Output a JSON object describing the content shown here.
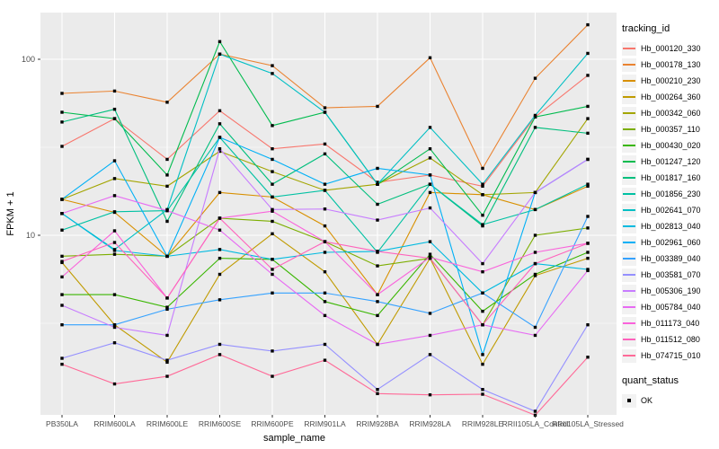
{
  "chart_data": {
    "type": "line",
    "xlabel": "sample_name",
    "ylabel": "FPKM + 1",
    "yscale": "log10",
    "ylim": [
      0.9,
      200
    ],
    "grid": "on",
    "legend_position": "right",
    "legend_title": "tracking_id",
    "marker_legend": {
      "title": "quant_status",
      "items": [
        {
          "label": "OK",
          "marker": "black-square"
        }
      ]
    },
    "yticks": [
      {
        "value": 10,
        "label": "10"
      },
      {
        "value": 100,
        "label": "100"
      }
    ],
    "yminor": [
      3.162,
      31.62
    ],
    "categories": [
      "PB350LA",
      "RRIM600LA",
      "RRIM600LE",
      "RRIM600SE",
      "RRIM600PE",
      "RRIM901LA",
      "RRIM928BA",
      "RRIM928LA",
      "RRIM928LE",
      "RRII105LA_Control",
      "RRII105LA_Stressed"
    ],
    "series": [
      {
        "name": "Hb_000120_330",
        "color": "#F8766D",
        "values": [
          32,
          46,
          27,
          51,
          31,
          33,
          20,
          22,
          19,
          47,
          81
        ]
      },
      {
        "name": "Hb_000178_130",
        "color": "#EA8331",
        "values": [
          64,
          66,
          57,
          107,
          92,
          53,
          54,
          102,
          24,
          78,
          157
        ]
      },
      {
        "name": "Hb_000210_230",
        "color": "#D89000",
        "values": [
          16,
          13.5,
          7.6,
          17.5,
          16.5,
          11.3,
          4.6,
          17.5,
          17,
          14,
          19
        ]
      },
      {
        "name": "Hb_000264_360",
        "color": "#C09B00",
        "values": [
          7,
          3.1,
          1.9,
          6,
          10.2,
          6.2,
          2.4,
          7.4,
          1.85,
          5.9,
          7.4
        ]
      },
      {
        "name": "Hb_000342_060",
        "color": "#A3A500",
        "values": [
          16,
          21,
          19,
          30,
          23,
          18,
          19.5,
          27.5,
          17,
          17.5,
          46
        ]
      },
      {
        "name": "Hb_000357_110",
        "color": "#7CAE00",
        "values": [
          7.6,
          7.8,
          7.6,
          12.5,
          12,
          9.2,
          6.7,
          7.4,
          3.1,
          10,
          11
        ]
      },
      {
        "name": "Hb_000430_020",
        "color": "#39B600",
        "values": [
          4.6,
          4.6,
          3.9,
          7.4,
          7.3,
          4.2,
          3.5,
          7.8,
          3.7,
          6,
          8
        ]
      },
      {
        "name": "Hb_001247_120",
        "color": "#00BB4E",
        "values": [
          50,
          46,
          22,
          126,
          42,
          50,
          19.5,
          31,
          13,
          47,
          54
        ]
      },
      {
        "name": "Hb_001817_160",
        "color": "#00BF7D",
        "values": [
          44,
          52,
          12,
          43,
          19.5,
          29,
          15,
          19.5,
          11.3,
          41,
          38
        ]
      },
      {
        "name": "Hb_001856_230",
        "color": "#00C1A3",
        "values": [
          10.7,
          13.6,
          13.8,
          36,
          16.5,
          18,
          8,
          19.5,
          11.5,
          14,
          19.5
        ]
      },
      {
        "name": "Hb_002641_070",
        "color": "#00BFC4",
        "values": [
          13.3,
          8.3,
          14,
          107,
          83,
          50,
          19.5,
          41,
          19.5,
          48,
          108
        ]
      },
      {
        "name": "Hb_002813_040",
        "color": "#00BAE0",
        "values": [
          13.3,
          8.2,
          7.6,
          8.3,
          7.3,
          8,
          8.1,
          9.2,
          4.7,
          6.9,
          6.4
        ]
      },
      {
        "name": "Hb_002961_060",
        "color": "#00B0F6",
        "values": [
          16,
          26.5,
          7.6,
          36,
          27,
          19.5,
          24,
          22,
          2.1,
          17.5,
          27
        ]
      },
      {
        "name": "Hb_003389_040",
        "color": "#35A2FF",
        "values": [
          3.1,
          3.1,
          3.8,
          4.3,
          4.7,
          4.7,
          4.2,
          3.6,
          4.7,
          3.0,
          12.8
        ]
      },
      {
        "name": "Hb_003581_070",
        "color": "#9590FF",
        "values": [
          2.0,
          2.45,
          1.95,
          2.4,
          2.2,
          2.4,
          1.33,
          2.1,
          1.33,
          1.0,
          3.1
        ]
      },
      {
        "name": "Hb_005306_190",
        "color": "#C77CFF",
        "values": [
          4.0,
          3.0,
          2.7,
          31,
          14,
          14.1,
          12.2,
          14.3,
          6.9,
          17.5,
          27
        ]
      },
      {
        "name": "Hb_005784_040",
        "color": "#E76BF3",
        "values": [
          13.3,
          16.8,
          13.8,
          10.7,
          6.0,
          3.5,
          2.4,
          2.7,
          3.1,
          2.7,
          6.3
        ]
      },
      {
        "name": "Hb_011173_040",
        "color": "#FA62DB",
        "values": [
          5.8,
          10.6,
          4.4,
          12.5,
          13.7,
          9.2,
          4.6,
          7.5,
          6.2,
          8.0,
          9.0
        ]
      },
      {
        "name": "Hb_011512_080",
        "color": "#FF62BC",
        "values": [
          7.1,
          9.1,
          4.4,
          12.5,
          6.4,
          9.2,
          8.1,
          7.4,
          3.1,
          6.9,
          9.0
        ]
      },
      {
        "name": "Hb_074715_010",
        "color": "#FF6A98",
        "values": [
          1.85,
          1.43,
          1.58,
          2.1,
          1.58,
          1.95,
          1.26,
          1.24,
          1.25,
          0.95,
          2.03
        ]
      }
    ],
    "panel_bg": "#EBEBEB",
    "grid_color": "#FFFFFF",
    "tick_text_color": "#4D4D4D",
    "marker_color": "#000000"
  }
}
